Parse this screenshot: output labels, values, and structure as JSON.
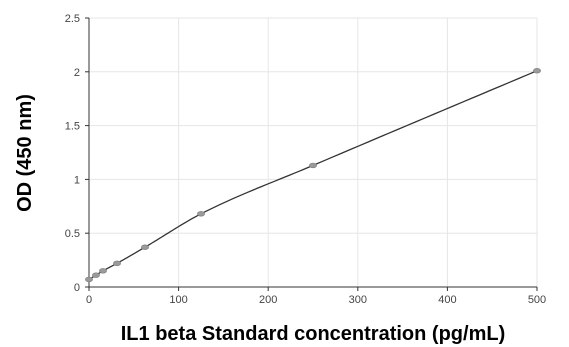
{
  "chart_data": {
    "type": "scatter",
    "title": "",
    "xlabel": "IL1 beta Standard concentration (pg/mL)",
    "ylabel": "OD (450 nm)",
    "xlim": [
      0,
      500
    ],
    "ylim": [
      0,
      2.5
    ],
    "x_ticks": [
      0,
      100,
      200,
      300,
      400,
      500
    ],
    "y_ticks": [
      0,
      0.5,
      1,
      1.5,
      2,
      2.5
    ],
    "x_tick_labels": [
      "0",
      "100",
      "200",
      "300",
      "400",
      "500"
    ],
    "y_tick_labels": [
      "0",
      "0.5",
      "1",
      "1.5",
      "2",
      "2.5"
    ],
    "grid": true,
    "legend": "none",
    "series": [
      {
        "x": [
          0,
          7.8,
          15.6,
          31.3,
          62.5,
          125,
          250,
          500
        ],
        "y": [
          0.07,
          0.11,
          0.15,
          0.22,
          0.37,
          0.68,
          1.13,
          2.01
        ]
      }
    ],
    "colors": {
      "line": "#333333",
      "marker": "#9a9a9a",
      "grid": "#e6e6e6",
      "axis": "#333333"
    }
  }
}
